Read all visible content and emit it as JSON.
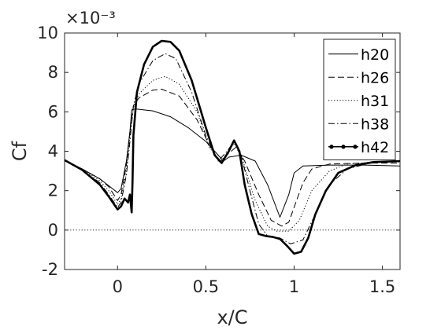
{
  "chart_data": {
    "type": "line",
    "xlabel": "x/C",
    "ylabel": "Cf",
    "y_exponent_label": "×10⁻³",
    "xlim": [
      -0.3,
      1.6
    ],
    "ylim": [
      -2,
      10
    ],
    "xticks": [
      0,
      0.5,
      1,
      1.5
    ],
    "xtick_labels": [
      "0",
      "0.5",
      "1",
      "1.5"
    ],
    "yticks": [
      -2,
      0,
      2,
      4,
      6,
      8,
      10
    ],
    "ytick_labels": [
      "-2",
      "0",
      "2",
      "4",
      "6",
      "8",
      "10"
    ],
    "grid": false,
    "legend_position": "top-right",
    "reference_line": {
      "y": 0,
      "style": "dotted"
    },
    "series": [
      {
        "name": "h20",
        "style": "solid",
        "width": 1,
        "points": [
          [
            -0.3,
            3.55
          ],
          [
            -0.2,
            3.1
          ],
          [
            -0.1,
            2.6
          ],
          [
            -0.05,
            2.25
          ],
          [
            0,
            1.9
          ],
          [
            0.02,
            2.1
          ],
          [
            0.05,
            3.5
          ],
          [
            0.07,
            5.0
          ],
          [
            0.08,
            6.1
          ],
          [
            0.1,
            6.15
          ],
          [
            0.2,
            6.05
          ],
          [
            0.3,
            5.75
          ],
          [
            0.4,
            5.2
          ],
          [
            0.5,
            4.5
          ],
          [
            0.55,
            4.0
          ],
          [
            0.6,
            3.5
          ],
          [
            0.63,
            3.7
          ],
          [
            0.7,
            3.8
          ],
          [
            0.78,
            3.5
          ],
          [
            0.85,
            2.3
          ],
          [
            0.92,
            0.65
          ],
          [
            0.97,
            1.8
          ],
          [
            1.0,
            2.9
          ],
          [
            1.05,
            3.25
          ],
          [
            1.2,
            3.3
          ],
          [
            1.4,
            3.3
          ],
          [
            1.6,
            3.25
          ]
        ]
      },
      {
        "name": "h26",
        "style": "dashed",
        "width": 1,
        "points": [
          [
            -0.3,
            3.55
          ],
          [
            -0.2,
            3.1
          ],
          [
            -0.1,
            2.6
          ],
          [
            -0.05,
            2.2
          ],
          [
            0,
            1.5
          ],
          [
            0.02,
            1.8
          ],
          [
            0.05,
            3.3
          ],
          [
            0.07,
            5.0
          ],
          [
            0.09,
            6.3
          ],
          [
            0.12,
            6.7
          ],
          [
            0.2,
            7.1
          ],
          [
            0.25,
            7.15
          ],
          [
            0.35,
            6.8
          ],
          [
            0.45,
            5.6
          ],
          [
            0.52,
            4.3
          ],
          [
            0.58,
            3.45
          ],
          [
            0.63,
            3.9
          ],
          [
            0.67,
            4.2
          ],
          [
            0.72,
            3.5
          ],
          [
            0.8,
            1.8
          ],
          [
            0.87,
            0.5
          ],
          [
            0.93,
            0.2
          ],
          [
            0.97,
            0.4
          ],
          [
            1.05,
            2.4
          ],
          [
            1.1,
            3.1
          ],
          [
            1.2,
            3.35
          ],
          [
            1.4,
            3.4
          ],
          [
            1.6,
            3.4
          ]
        ]
      },
      {
        "name": "h31",
        "style": "dotted",
        "width": 1,
        "points": [
          [
            -0.3,
            3.55
          ],
          [
            -0.2,
            3.1
          ],
          [
            -0.1,
            2.5
          ],
          [
            -0.05,
            2.0
          ],
          [
            0,
            1.3
          ],
          [
            0.02,
            1.6
          ],
          [
            0.05,
            3.0
          ],
          [
            0.07,
            4.8
          ],
          [
            0.09,
            6.2
          ],
          [
            0.12,
            6.9
          ],
          [
            0.2,
            7.6
          ],
          [
            0.27,
            7.8
          ],
          [
            0.35,
            7.4
          ],
          [
            0.45,
            6.0
          ],
          [
            0.52,
            4.2
          ],
          [
            0.58,
            3.45
          ],
          [
            0.62,
            3.9
          ],
          [
            0.66,
            4.4
          ],
          [
            0.7,
            3.8
          ],
          [
            0.78,
            1.5
          ],
          [
            0.85,
            0.2
          ],
          [
            0.9,
            -0.05
          ],
          [
            0.97,
            -0.05
          ],
          [
            1.03,
            0.5
          ],
          [
            1.1,
            2.0
          ],
          [
            1.2,
            3.0
          ],
          [
            1.3,
            3.35
          ],
          [
            1.45,
            3.45
          ],
          [
            1.6,
            3.45
          ]
        ]
      },
      {
        "name": "h38",
        "style": "dashdot",
        "width": 1,
        "points": [
          [
            -0.3,
            3.55
          ],
          [
            -0.2,
            3.05
          ],
          [
            -0.1,
            2.4
          ],
          [
            -0.05,
            1.8
          ],
          [
            0,
            1.15
          ],
          [
            0.02,
            1.4
          ],
          [
            0.05,
            2.8
          ],
          [
            0.07,
            4.5
          ],
          [
            0.09,
            6.3
          ],
          [
            0.12,
            7.4
          ],
          [
            0.2,
            8.6
          ],
          [
            0.27,
            8.95
          ],
          [
            0.33,
            8.7
          ],
          [
            0.42,
            7.0
          ],
          [
            0.5,
            4.8
          ],
          [
            0.57,
            3.5
          ],
          [
            0.62,
            4.0
          ],
          [
            0.66,
            4.5
          ],
          [
            0.7,
            3.8
          ],
          [
            0.75,
            2.0
          ],
          [
            0.8,
            0.3
          ],
          [
            0.85,
            -0.3
          ],
          [
            0.92,
            -0.4
          ],
          [
            0.98,
            -0.7
          ],
          [
            1.05,
            -0.5
          ],
          [
            1.12,
            0.8
          ],
          [
            1.2,
            2.3
          ],
          [
            1.3,
            3.1
          ],
          [
            1.45,
            3.45
          ],
          [
            1.6,
            3.5
          ]
        ]
      },
      {
        "name": "h42",
        "style": "dotmarker",
        "width": 2.6,
        "points": [
          [
            -0.3,
            3.55
          ],
          [
            -0.2,
            3.05
          ],
          [
            -0.1,
            2.3
          ],
          [
            -0.05,
            1.7
          ],
          [
            0,
            1.05
          ],
          [
            0.02,
            1.2
          ],
          [
            0.04,
            1.6
          ],
          [
            0.06,
            1.4
          ],
          [
            0.07,
            1.8
          ],
          [
            0.08,
            0.9
          ],
          [
            0.085,
            2.5
          ],
          [
            0.09,
            4.8
          ],
          [
            0.11,
            7.0
          ],
          [
            0.15,
            8.4
          ],
          [
            0.2,
            9.3
          ],
          [
            0.25,
            9.6
          ],
          [
            0.3,
            9.55
          ],
          [
            0.35,
            9.1
          ],
          [
            0.42,
            7.6
          ],
          [
            0.5,
            5.2
          ],
          [
            0.55,
            3.8
          ],
          [
            0.59,
            3.4
          ],
          [
            0.63,
            4.0
          ],
          [
            0.66,
            4.55
          ],
          [
            0.69,
            4.0
          ],
          [
            0.72,
            2.3
          ],
          [
            0.76,
            0.8
          ],
          [
            0.8,
            -0.2
          ],
          [
            0.84,
            -0.3
          ],
          [
            0.88,
            -0.35
          ],
          [
            0.92,
            -0.45
          ],
          [
            0.96,
            -0.8
          ],
          [
            1.0,
            -1.2
          ],
          [
            1.04,
            -1.1
          ],
          [
            1.08,
            -0.4
          ],
          [
            1.12,
            0.8
          ],
          [
            1.18,
            2.0
          ],
          [
            1.25,
            2.9
          ],
          [
            1.35,
            3.3
          ],
          [
            1.45,
            3.45
          ],
          [
            1.6,
            3.5
          ]
        ]
      }
    ]
  }
}
